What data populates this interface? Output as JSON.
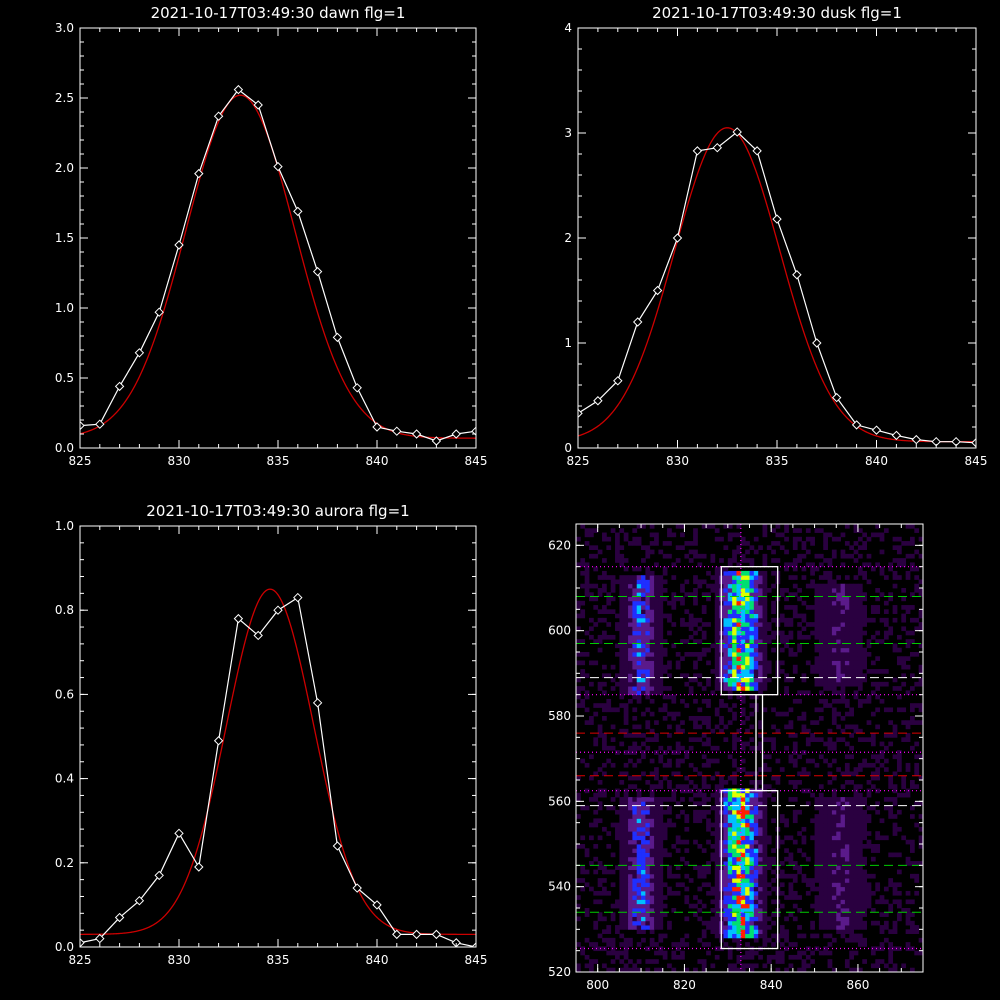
{
  "chart_data": [
    {
      "type": "line",
      "title": "2021-10-17T03:49:30 dawn flg=1",
      "xlim": [
        825,
        845
      ],
      "ylim": [
        0,
        3.0
      ],
      "xticks": [
        "825",
        "830",
        "835",
        "840",
        "845"
      ],
      "yticks": [
        "0.0",
        "0.5",
        "1.0",
        "1.5",
        "2.0",
        "2.5",
        "3.0"
      ],
      "xtick_values": [
        825,
        830,
        835,
        840,
        845
      ],
      "ytick_values": [
        0,
        0.5,
        1.0,
        1.5,
        2.0,
        2.5,
        3.0
      ],
      "colors": {
        "observed": "#ffffff",
        "fit": "#cc0000"
      },
      "series": [
        {
          "role": "observed",
          "x": [
            825,
            826,
            827,
            828,
            829,
            830,
            831,
            832,
            833,
            834,
            835,
            836,
            837,
            838,
            839,
            840,
            841,
            842,
            843,
            844,
            845
          ],
          "y": [
            0.16,
            0.17,
            0.44,
            0.68,
            0.97,
            1.45,
            1.96,
            2.37,
            2.56,
            2.45,
            2.01,
            1.69,
            1.26,
            0.79,
            0.43,
            0.15,
            0.12,
            0.1,
            0.05,
            0.1,
            0.12
          ]
        },
        {
          "role": "fit",
          "gaussian": {
            "amplitude": 2.45,
            "center": 833.1,
            "sigma": 2.75,
            "baseline": 0.07
          }
        }
      ]
    },
    {
      "type": "line",
      "title": "2021-10-17T03:49:30 dusk flg=1",
      "xlim": [
        825,
        845
      ],
      "ylim": [
        0,
        4
      ],
      "xticks": [
        "825",
        "830",
        "835",
        "840",
        "845"
      ],
      "yticks": [
        "0",
        "1",
        "2",
        "3",
        "4"
      ],
      "xtick_values": [
        825,
        830,
        835,
        840,
        845
      ],
      "ytick_values": [
        0,
        1,
        2,
        3,
        4
      ],
      "colors": {
        "observed": "#ffffff",
        "fit": "#cc0000"
      },
      "series": [
        {
          "role": "observed",
          "x": [
            825,
            826,
            827,
            828,
            829,
            830,
            831,
            832,
            833,
            834,
            835,
            836,
            837,
            838,
            839,
            840,
            841,
            842,
            843,
            844,
            845
          ],
          "y": [
            0.33,
            0.45,
            0.64,
            1.2,
            1.5,
            2.0,
            2.83,
            2.86,
            3.01,
            2.83,
            2.18,
            1.65,
            1.0,
            0.48,
            0.22,
            0.17,
            0.12,
            0.08,
            0.06,
            0.06,
            0.05
          ]
        },
        {
          "role": "fit",
          "gaussian": {
            "amplitude": 2.99,
            "center": 832.5,
            "sigma": 2.65,
            "baseline": 0.06
          }
        }
      ]
    },
    {
      "type": "line",
      "title": "2021-10-17T03:49:30 aurora flg=1",
      "xlim": [
        825,
        845
      ],
      "ylim": [
        0,
        1.0
      ],
      "xticks": [
        "825",
        "830",
        "835",
        "840",
        "845"
      ],
      "yticks": [
        "0.0",
        "0.2",
        "0.4",
        "0.6",
        "0.8",
        "1.0"
      ],
      "xtick_values": [
        825,
        830,
        835,
        840,
        845
      ],
      "ytick_values": [
        0,
        0.2,
        0.4,
        0.6,
        0.8,
        1.0
      ],
      "colors": {
        "observed": "#ffffff",
        "fit": "#cc0000"
      },
      "series": [
        {
          "role": "observed",
          "x": [
            825,
            826,
            827,
            828,
            829,
            830,
            831,
            832,
            833,
            834,
            835,
            836,
            837,
            838,
            839,
            840,
            841,
            842,
            843,
            844,
            845
          ],
          "y": [
            0.01,
            0.02,
            0.07,
            0.11,
            0.17,
            0.27,
            0.19,
            0.49,
            0.78,
            0.74,
            0.8,
            0.83,
            0.58,
            0.24,
            0.14,
            0.1,
            0.03,
            0.03,
            0.03,
            0.01,
            0.0
          ]
        },
        {
          "role": "fit",
          "gaussian": {
            "amplitude": 0.82,
            "center": 834.6,
            "sigma": 2.2,
            "baseline": 0.03
          }
        }
      ]
    },
    {
      "type": "heatmap",
      "title": "",
      "xlim": [
        795,
        875
      ],
      "ylim": [
        520,
        625
      ],
      "xticks": [
        "800",
        "820",
        "840",
        "860"
      ],
      "yticks": [
        "520",
        "540",
        "560",
        "580",
        "600",
        "620"
      ],
      "xtick_values": [
        800,
        820,
        840,
        860
      ],
      "ytick_values": [
        520,
        540,
        560,
        580,
        600,
        620
      ],
      "emission_bands": [
        {
          "x_center": 810,
          "x_width": 8,
          "y_ranges": [
            [
              530,
              560
            ],
            [
              585,
              612
            ]
          ],
          "strength": 0.45
        },
        {
          "x_center": 833,
          "x_width": 9,
          "y_ranges": [
            [
              528,
              562
            ],
            [
              586,
              613
            ]
          ],
          "strength": 0.9
        },
        {
          "x_center": 856,
          "x_width": 9,
          "y_ranges": [
            [
              530,
              560
            ],
            [
              587,
              610
            ]
          ],
          "strength": 0.25
        }
      ],
      "boxes": [
        {
          "x": [
            828.5,
            841.5
          ],
          "y": [
            525.5,
            562.5
          ]
        },
        {
          "x": [
            828.5,
            841.5
          ],
          "y": [
            585,
            615
          ]
        },
        {
          "x": [
            836.5,
            838
          ],
          "y": [
            562.5,
            585
          ]
        }
      ],
      "vertical_line": {
        "x": 833,
        "color": "#ff00ff",
        "style": "dotted"
      },
      "hlines": [
        {
          "y": 615,
          "color": "#ff00ff",
          "style": "dotted"
        },
        {
          "y": 608,
          "color": "#00cc00",
          "style": "dashed"
        },
        {
          "y": 597,
          "color": "#00cc00",
          "style": "dashed"
        },
        {
          "y": 589,
          "color": "#ffffff",
          "style": "dashed"
        },
        {
          "y": 585,
          "color": "#ff00ff",
          "style": "dotted"
        },
        {
          "y": 576,
          "color": "#dd0000",
          "style": "dashed"
        },
        {
          "y": 571.5,
          "color": "#ff00ff",
          "style": "dotted"
        },
        {
          "y": 566,
          "color": "#dd0000",
          "style": "dashed"
        },
        {
          "y": 562.5,
          "color": "#ff00ff",
          "style": "dotted"
        },
        {
          "y": 559,
          "color": "#ffffff",
          "style": "dashed"
        },
        {
          "y": 545,
          "color": "#00cc00",
          "style": "dashed"
        },
        {
          "y": 534,
          "color": "#00cc00",
          "style": "dashed"
        },
        {
          "y": 525.5,
          "color": "#ff00ff",
          "style": "dotted"
        }
      ],
      "colormap": [
        "#000000",
        "#2a0040",
        "#5a1a8a",
        "#1f2fff",
        "#00c0ff",
        "#00e070",
        "#e0ff00",
        "#ff2000"
      ]
    }
  ]
}
